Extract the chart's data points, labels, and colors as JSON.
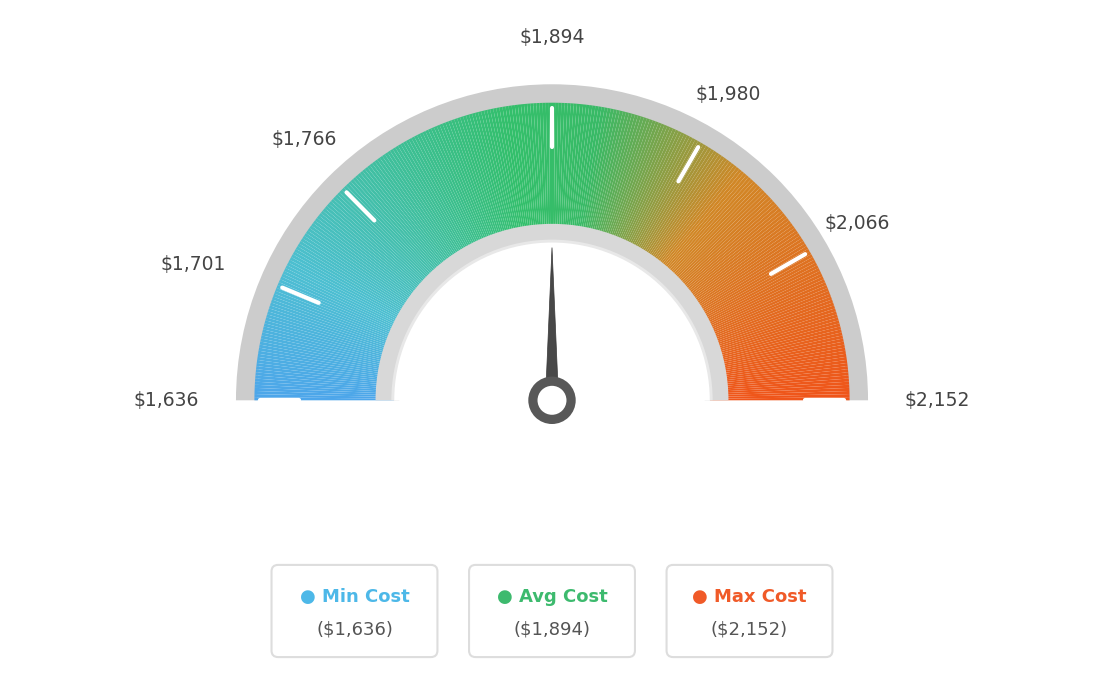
{
  "min_val": 1636,
  "max_val": 2152,
  "avg_val": 1894,
  "min_label": "$1,636",
  "max_label": "$2,152",
  "avg_label": "$1,894",
  "tick_labels": [
    "$1,636",
    "$1,701",
    "$1,766",
    "$1,894",
    "$1,980",
    "$2,066",
    "$2,152"
  ],
  "tick_values": [
    1636,
    1701,
    1766,
    1894,
    1980,
    2066,
    2152
  ],
  "legend_min_color": "#4db8e8",
  "legend_avg_color": "#3dba6e",
  "legend_max_color": "#f05a28",
  "background_color": "#ffffff",
  "needle_color": "#4a4a4a",
  "card_border_color": "#dddddd",
  "card_text_color": "#555555",
  "outer_ring_color": "#d0d0d0",
  "inner_ring_color": "#e0e0e0"
}
